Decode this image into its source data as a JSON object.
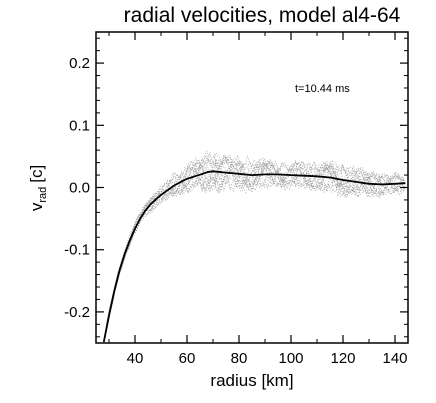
{
  "chart_data": {
    "type": "line",
    "title": "radial velocities, model al4-64",
    "xlabel": "radius [km]",
    "ylabel_main": "v",
    "ylabel_sub": "rad",
    "ylabel_unit": "[c]",
    "annotation": "t=10.44  ms",
    "xlim": [
      25,
      145
    ],
    "ylim": [
      -0.25,
      0.25
    ],
    "x_ticks": [
      40,
      60,
      80,
      100,
      120,
      140
    ],
    "y_ticks": [
      -0.2,
      -0.1,
      0.0,
      0.1,
      0.2
    ],
    "y_tick_labels": [
      "-0.2",
      "-0.1",
      "0.0",
      "0.1",
      "0.2"
    ],
    "grid": false,
    "series": [
      {
        "style": "solid",
        "color": "#000000",
        "x": [
          28,
          30,
          32,
          34,
          36,
          38,
          40,
          42,
          44,
          46,
          48,
          50,
          52,
          55,
          58,
          60,
          63,
          66,
          68,
          70,
          75,
          80,
          85,
          90,
          95,
          100,
          105,
          110,
          115,
          120,
          125,
          130,
          135,
          140,
          144
        ],
        "y": [
          -0.25,
          -0.206,
          -0.167,
          -0.134,
          -0.107,
          -0.085,
          -0.066,
          -0.05,
          -0.037,
          -0.027,
          -0.019,
          -0.012,
          -0.006,
          0.003,
          0.01,
          0.014,
          0.018,
          0.022,
          0.025,
          0.026,
          0.024,
          0.022,
          0.02,
          0.021,
          0.021,
          0.02,
          0.019,
          0.018,
          0.016,
          0.012,
          0.009,
          0.006,
          0.005,
          0.006,
          0.007
        ]
      },
      {
        "style": "dotted-scatter",
        "color": "#9a9a9a",
        "x_range": [
          28,
          144
        ],
        "spread": [
          [
            28,
            0.006
          ],
          [
            40,
            0.008
          ],
          [
            50,
            0.012
          ],
          [
            60,
            0.02
          ],
          [
            70,
            0.028
          ],
          [
            80,
            0.022
          ],
          [
            90,
            0.02
          ],
          [
            100,
            0.018
          ],
          [
            110,
            0.02
          ],
          [
            120,
            0.022
          ],
          [
            130,
            0.018
          ],
          [
            144,
            0.012
          ]
        ]
      }
    ],
    "colors": {
      "axes": "#000000",
      "mean_line": "#000000",
      "scatter": "#9a9a9a"
    }
  }
}
